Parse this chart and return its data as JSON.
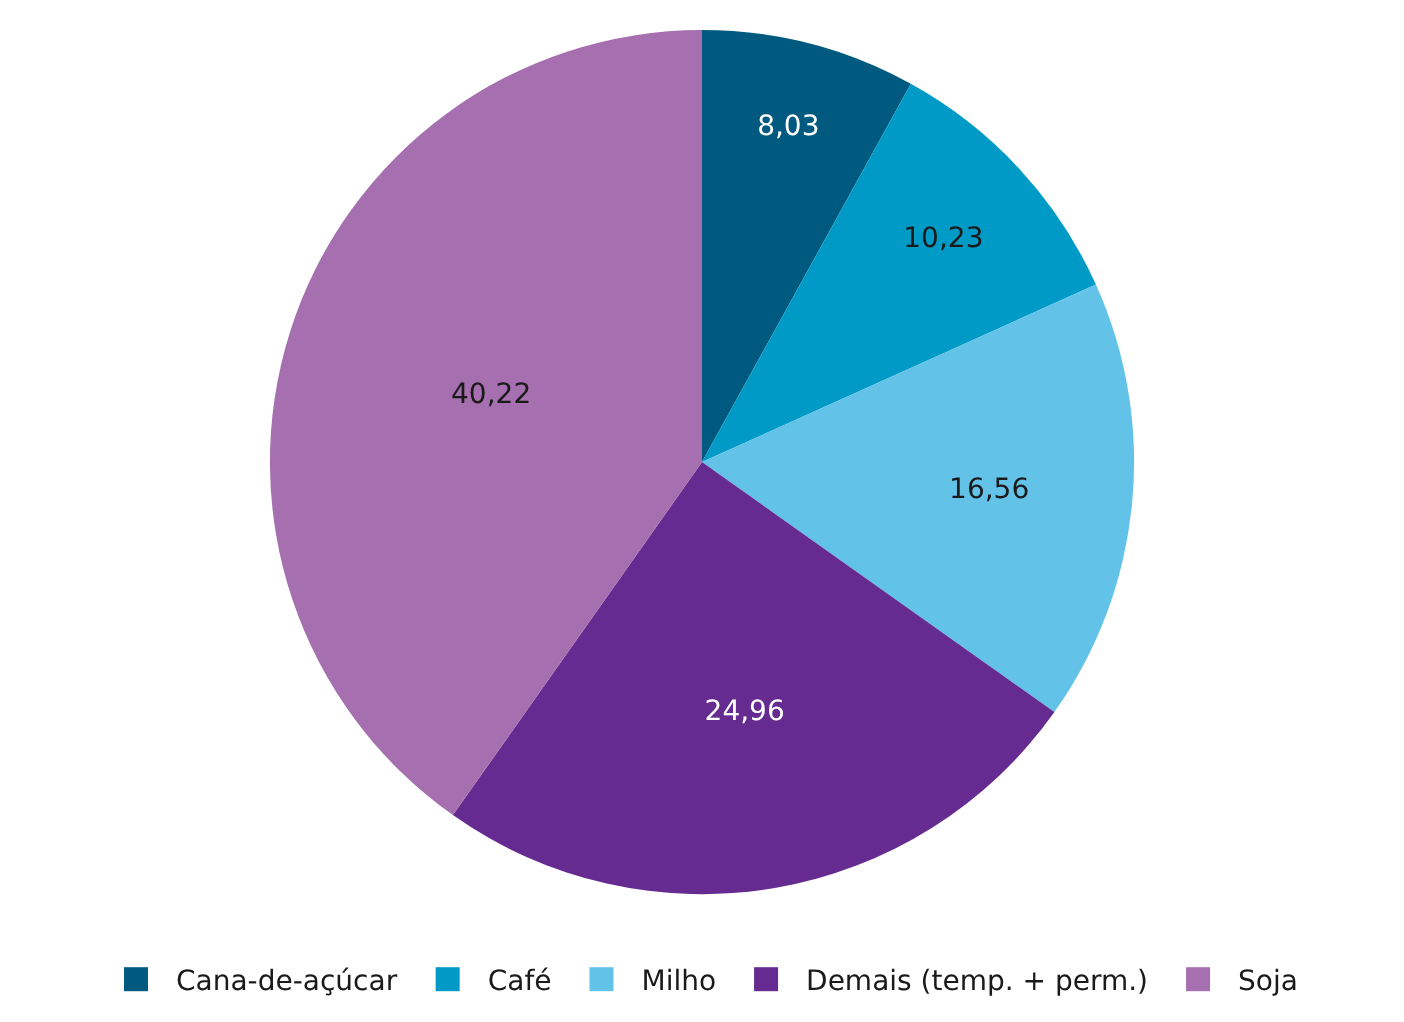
{
  "chart_data": {
    "type": "pie",
    "categories": [
      "Cana-de-açúcar",
      "Café",
      "Milho",
      "Demais (temp. + perm.)",
      "Soja"
    ],
    "values": [
      8.03,
      10.23,
      16.56,
      24.96,
      40.22
    ],
    "value_labels": [
      "8,03",
      "10,23",
      "16,56",
      "24,96",
      "40,22"
    ],
    "colors": [
      "#005a7f",
      "#009ac7",
      "#62c2e8",
      "#652b91",
      "#a66faf"
    ],
    "legend": "bottom"
  }
}
